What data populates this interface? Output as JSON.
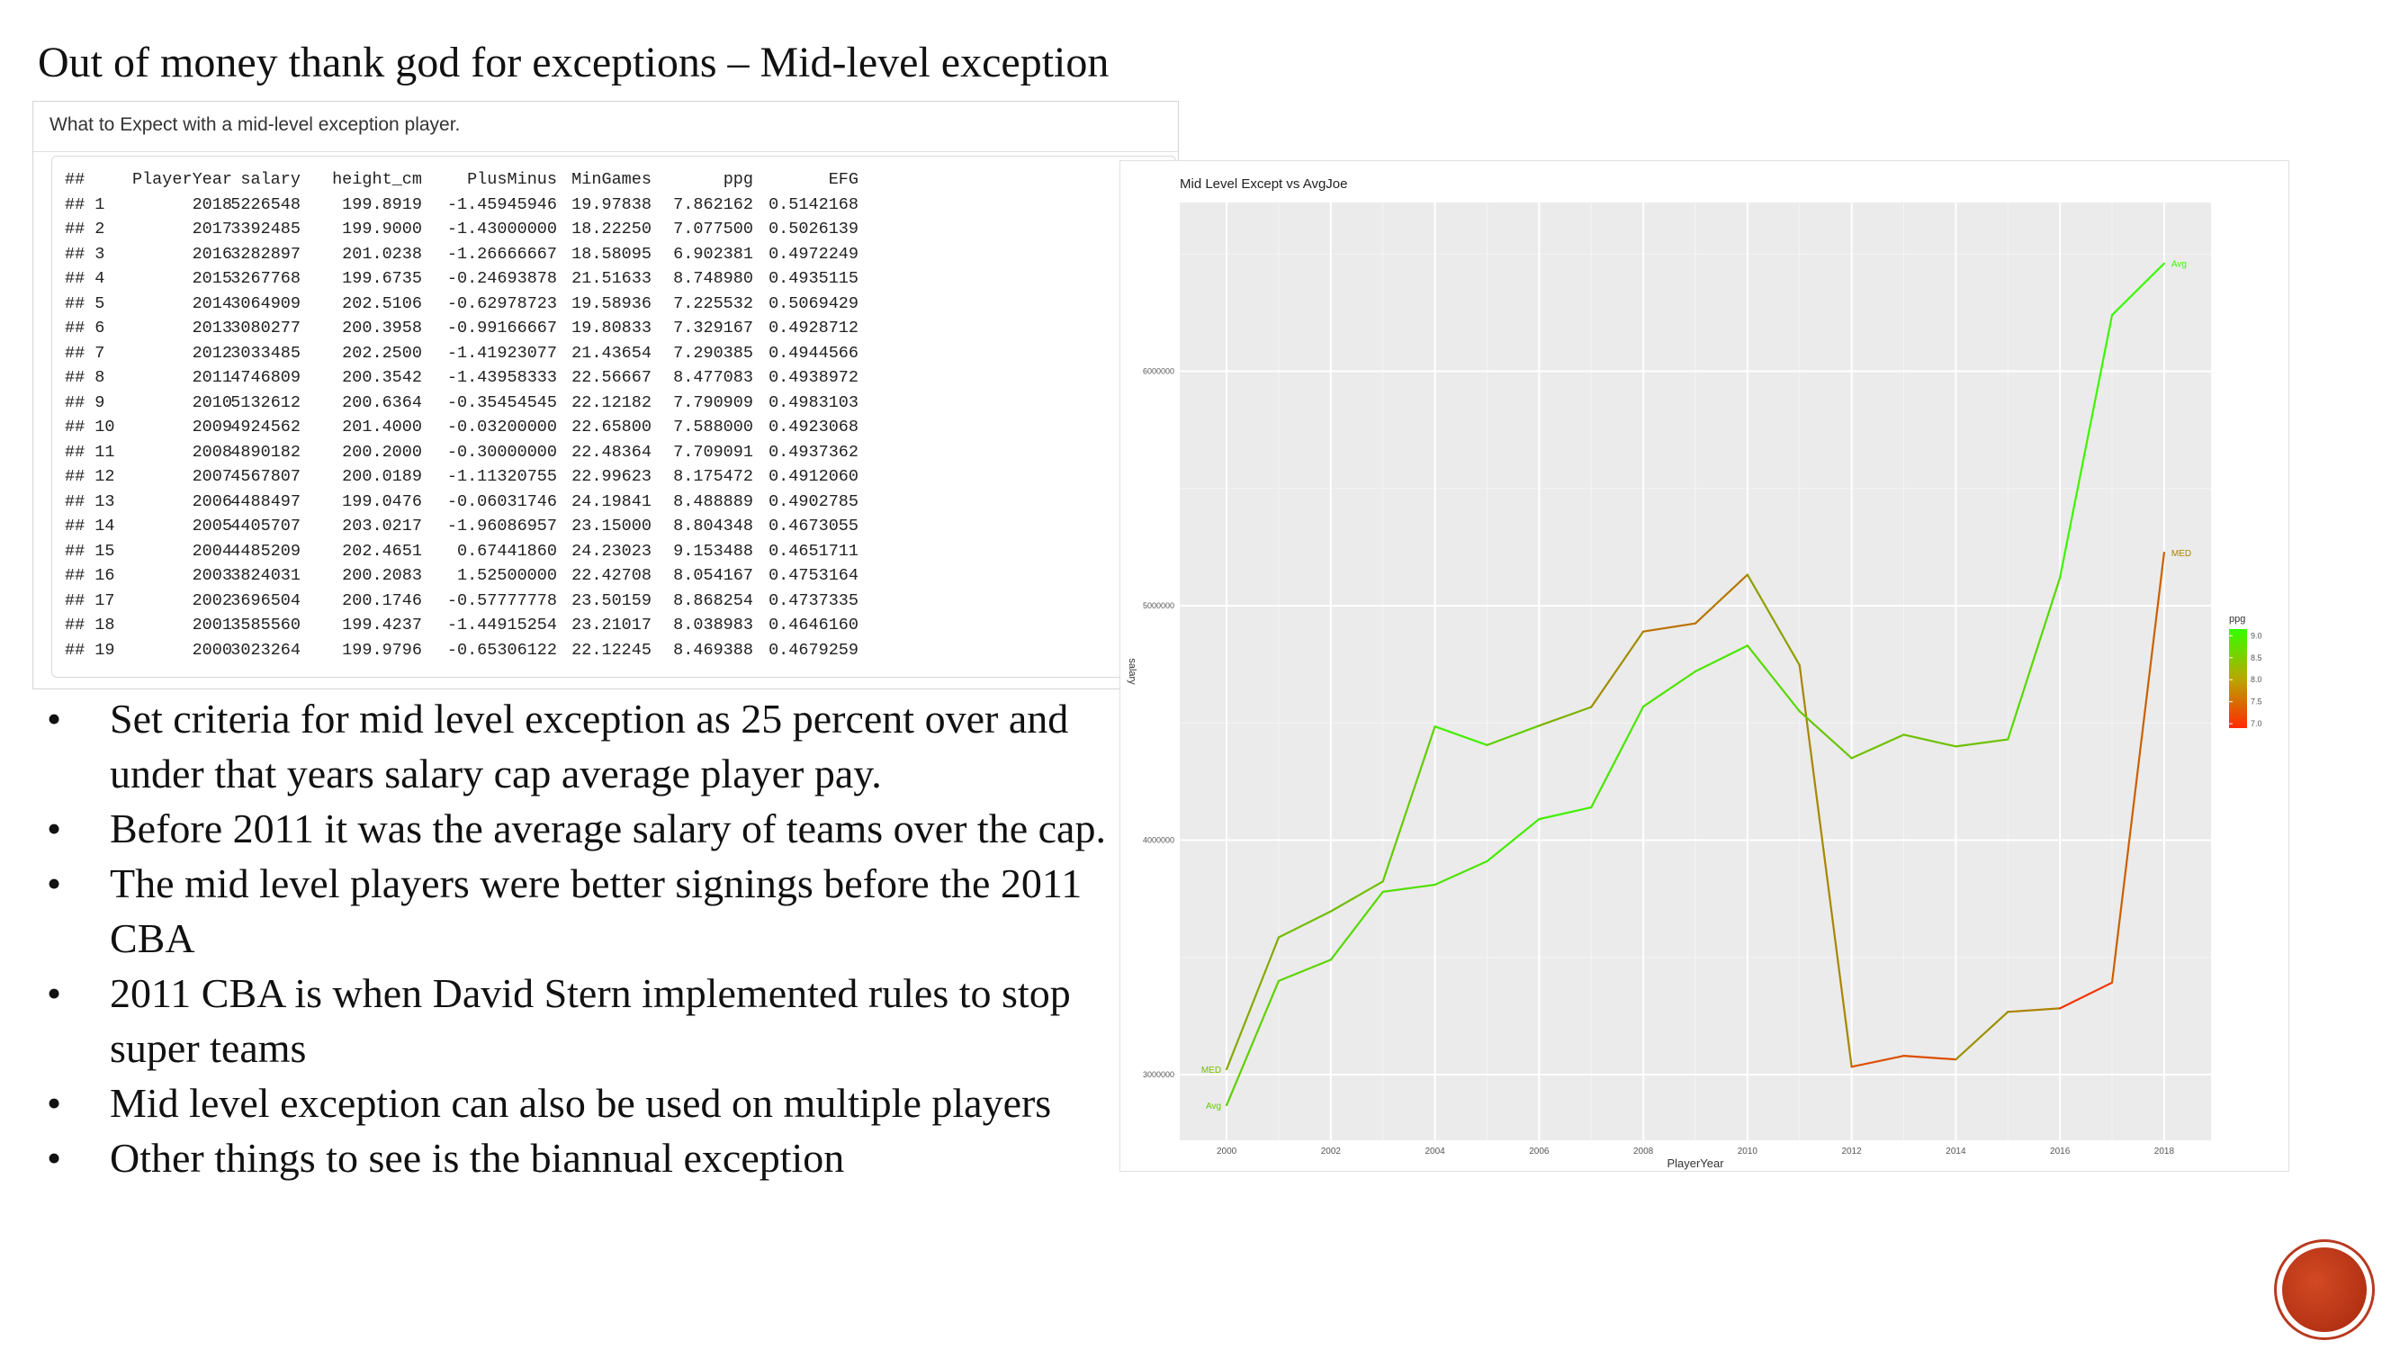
{
  "slide": {
    "title": "Out of money thank god for exceptions – Mid-level exception"
  },
  "output": {
    "caption": "What to Expect with a mid-level exception player.",
    "header": [
      "##",
      "PlayerYear",
      "salary",
      "height_cm",
      "PlusMinus",
      "MinGames",
      "ppg",
      "EFG"
    ],
    "rows": [
      [
        "## 1",
        "2018",
        "5226548",
        "199.8919",
        "-1.45945946",
        "19.97838",
        "7.862162",
        "0.5142168"
      ],
      [
        "## 2",
        "2017",
        "3392485",
        "199.9000",
        "-1.43000000",
        "18.22250",
        "7.077500",
        "0.5026139"
      ],
      [
        "## 3",
        "2016",
        "3282897",
        "201.0238",
        "-1.26666667",
        "18.58095",
        "6.902381",
        "0.4972249"
      ],
      [
        "## 4",
        "2015",
        "3267768",
        "199.6735",
        "-0.24693878",
        "21.51633",
        "8.748980",
        "0.4935115"
      ],
      [
        "## 5",
        "2014",
        "3064909",
        "202.5106",
        "-0.62978723",
        "19.58936",
        "7.225532",
        "0.5069429"
      ],
      [
        "## 6",
        "2013",
        "3080277",
        "200.3958",
        "-0.99166667",
        "19.80833",
        "7.329167",
        "0.4928712"
      ],
      [
        "## 7",
        "2012",
        "3033485",
        "202.2500",
        "-1.41923077",
        "21.43654",
        "7.290385",
        "0.4944566"
      ],
      [
        "## 8",
        "2011",
        "4746809",
        "200.3542",
        "-1.43958333",
        "22.56667",
        "8.477083",
        "0.4938972"
      ],
      [
        "## 9",
        "2010",
        "5132612",
        "200.6364",
        "-0.35454545",
        "22.12182",
        "7.790909",
        "0.4983103"
      ],
      [
        "## 10",
        "2009",
        "4924562",
        "201.4000",
        "-0.03200000",
        "22.65800",
        "7.588000",
        "0.4923068"
      ],
      [
        "## 11",
        "2008",
        "4890182",
        "200.2000",
        "-0.30000000",
        "22.48364",
        "7.709091",
        "0.4937362"
      ],
      [
        "## 12",
        "2007",
        "4567807",
        "200.0189",
        "-1.11320755",
        "22.99623",
        "8.175472",
        "0.4912060"
      ],
      [
        "## 13",
        "2006",
        "4488497",
        "199.0476",
        "-0.06031746",
        "24.19841",
        "8.488889",
        "0.4902785"
      ],
      [
        "## 14",
        "2005",
        "4405707",
        "203.0217",
        "-1.96086957",
        "23.15000",
        "8.804348",
        "0.4673055"
      ],
      [
        "## 15",
        "2004",
        "4485209",
        "202.4651",
        "0.67441860",
        "24.23023",
        "9.153488",
        "0.4651711"
      ],
      [
        "## 16",
        "2003",
        "3824031",
        "200.2083",
        "1.52500000",
        "22.42708",
        "8.054167",
        "0.4753164"
      ],
      [
        "## 17",
        "2002",
        "3696504",
        "200.1746",
        "-0.57777778",
        "23.50159",
        "8.868254",
        "0.4737335"
      ],
      [
        "## 18",
        "2001",
        "3585560",
        "199.4237",
        "-1.44915254",
        "23.21017",
        "8.038983",
        "0.4646160"
      ],
      [
        "## 19",
        "2000",
        "3023264",
        "199.9796",
        "-0.65306122",
        "22.12245",
        "8.469388",
        "0.4679259"
      ]
    ]
  },
  "bullets": [
    "Set criteria for mid level exception as 25 percent over and under that years salary cap average player pay.",
    "Before 2011 it was the average salary of teams over the cap.",
    "The mid level players were better signings before the 2011 CBA",
    "2011 CBA is when David Stern implemented rules to stop super teams",
    "Mid level exception can also be used on multiple players",
    "Other things to see is the biannual exception"
  ],
  "bullet_glyph": "•",
  "chart_data": {
    "type": "line",
    "title": "Mid Level Except vs AvgJoe",
    "xlabel": "PlayerYear",
    "ylabel": "salary",
    "xlim": [
      1999.1,
      2018.9
    ],
    "ylim": [
      2720000,
      6720000
    ],
    "x_ticks": [
      2000,
      2002,
      2004,
      2006,
      2008,
      2010,
      2012,
      2014,
      2016,
      2018
    ],
    "y_ticks": [
      3000000,
      4000000,
      5000000,
      6000000
    ],
    "y_tick_labels": [
      "3000000",
      "4000000",
      "5000000",
      "6000000"
    ],
    "grid": true,
    "background": "#ebebeb",
    "series": [
      {
        "name": "MED",
        "x": [
          2000,
          2001,
          2002,
          2003,
          2004,
          2005,
          2006,
          2007,
          2008,
          2009,
          2010,
          2011,
          2012,
          2013,
          2014,
          2015,
          2016,
          2017,
          2018
        ],
        "values": [
          3023264,
          3585560,
          3696504,
          3824031,
          4485209,
          4405707,
          4488497,
          4567807,
          4890182,
          4924562,
          5132612,
          4746809,
          3033485,
          3080277,
          3064909,
          3267768,
          3282897,
          3392485,
          5226548
        ],
        "ppg": [
          8.469388,
          8.038983,
          8.868254,
          8.054167,
          9.153488,
          8.804348,
          8.488889,
          8.175472,
          7.709091,
          7.588,
          7.790909,
          8.477083,
          7.290385,
          7.329167,
          7.225532,
          8.74898,
          6.902381,
          7.0775,
          7.862162
        ]
      },
      {
        "name": "Avg",
        "x": [
          2000,
          2001,
          2002,
          2003,
          2004,
          2005,
          2006,
          2007,
          2008,
          2009,
          2010,
          2011,
          2012,
          2013,
          2014,
          2015,
          2016,
          2017,
          2018
        ],
        "values": [
          2870000,
          3400000,
          3490000,
          3780000,
          3810000,
          3910000,
          4090000,
          4140000,
          4570000,
          4720000,
          4830000,
          4550000,
          4350000,
          4450000,
          4400000,
          4430000,
          5120000,
          6240000,
          6460000
        ],
        "ppg": [
          8.6,
          8.7,
          8.7,
          8.8,
          8.8,
          8.9,
          9.0,
          9.0,
          8.8,
          8.9,
          8.9,
          8.6,
          8.5,
          8.5,
          8.5,
          8.5,
          9.0,
          9.1,
          9.1
        ]
      }
    ],
    "legend": {
      "title": "ppg",
      "placement": "right",
      "ticks": [
        9.0,
        8.5,
        8.0,
        7.5,
        7.0
      ],
      "tick_labels": [
        "9.0",
        "8.5",
        "8.0",
        "7.5",
        "7.0"
      ],
      "range": [
        6.9,
        9.15
      ],
      "color_low": "#ff2a00",
      "color_high": "#33ff00"
    }
  },
  "logo": {
    "color": "#b83a1f"
  }
}
